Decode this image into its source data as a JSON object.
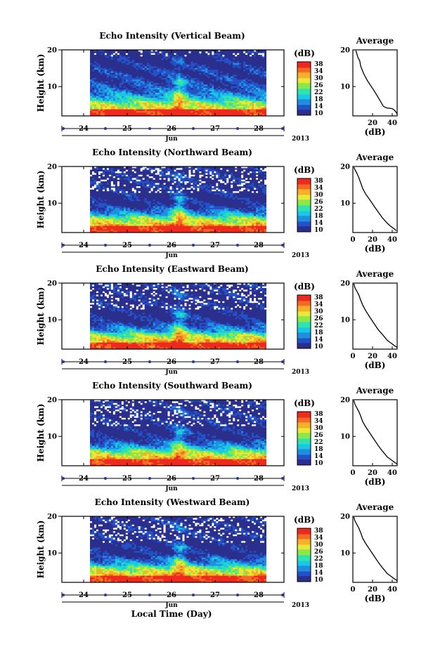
{
  "figure": {
    "xlabel": "Local Time (Day)",
    "month_label": "Jun",
    "year_label": "2013"
  },
  "chart_data": {
    "type": "heatmap",
    "x_ticks": [
      "24",
      "25",
      "26",
      "27",
      "28"
    ],
    "y_ticks": [
      "20",
      "10"
    ],
    "ylabel": "Height (km)",
    "ylim": [
      2,
      20
    ],
    "colorbar": {
      "unit_label": "(dB)",
      "ticks": [
        "38",
        "34",
        "30",
        "26",
        "22",
        "18",
        "14",
        "10"
      ],
      "range": [
        10,
        38
      ],
      "colors": [
        "#2b2f8c",
        "#2450c8",
        "#1f8fe0",
        "#18c8e6",
        "#2fe3b0",
        "#8ae84a",
        "#e8e838",
        "#f5b02a",
        "#f46a22",
        "#ee2a1e"
      ]
    },
    "profile": {
      "title": "Average",
      "xlabel": "(dB)",
      "y_ticks": [
        "20",
        "10"
      ],
      "xlim": [
        0,
        45
      ]
    },
    "panels": [
      {
        "title": "Echo Intensity (Vertical Beam)",
        "profile_x_ticks": [
          "20",
          "40"
        ],
        "profile": [
          [
            45,
            2.5
          ],
          [
            44,
            3
          ],
          [
            42,
            3.6
          ],
          [
            40,
            4
          ],
          [
            34,
            4.2
          ],
          [
            31,
            4.6
          ],
          [
            28,
            6
          ],
          [
            24,
            7.8
          ],
          [
            20,
            9.5
          ],
          [
            15,
            11.5
          ],
          [
            11,
            13.5
          ],
          [
            8,
            15.5
          ],
          [
            7,
            17
          ],
          [
            5,
            18
          ],
          [
            4,
            19
          ],
          [
            3,
            19.8
          ]
        ]
      },
      {
        "title": "Echo Intensity (Northward Beam)",
        "profile_x_ticks": [
          "0",
          "20",
          "40"
        ],
        "profile": [
          [
            44,
            2.5
          ],
          [
            42,
            3
          ],
          [
            38,
            3.8
          ],
          [
            35,
            4.5
          ],
          [
            30,
            6
          ],
          [
            26,
            7.5
          ],
          [
            22,
            9
          ],
          [
            17,
            11
          ],
          [
            13,
            12.5
          ],
          [
            10,
            14
          ],
          [
            8,
            15.5
          ],
          [
            6,
            17
          ],
          [
            4,
            18.2
          ],
          [
            2,
            19.2
          ],
          [
            1,
            19.8
          ]
        ]
      },
      {
        "title": "Echo Intensity (Eastward Beam)",
        "profile_x_ticks": [
          "0",
          "20",
          "40"
        ],
        "profile": [
          [
            45,
            2.5
          ],
          [
            42,
            3
          ],
          [
            38,
            3.8
          ],
          [
            35,
            4.4
          ],
          [
            30,
            6
          ],
          [
            26,
            7.2
          ],
          [
            22,
            8.8
          ],
          [
            17,
            10.8
          ],
          [
            13,
            12.5
          ],
          [
            10,
            14
          ],
          [
            8,
            15.3
          ],
          [
            6,
            16.8
          ],
          [
            4,
            17.8
          ],
          [
            2,
            18.8
          ],
          [
            1,
            19.8
          ]
        ]
      },
      {
        "title": "Echo Intensity (Southward Beam)",
        "profile_x_ticks": [
          "0",
          "20",
          "40"
        ],
        "profile": [
          [
            45,
            2.5
          ],
          [
            42,
            3
          ],
          [
            38,
            3.8
          ],
          [
            35,
            4.4
          ],
          [
            30,
            6
          ],
          [
            26,
            7.4
          ],
          [
            22,
            9
          ],
          [
            17,
            11
          ],
          [
            13,
            12.6
          ],
          [
            10,
            14
          ],
          [
            8,
            15.5
          ],
          [
            6,
            16.8
          ],
          [
            4,
            17.8
          ],
          [
            2,
            18.8
          ],
          [
            1,
            19.8
          ]
        ]
      },
      {
        "title": "Echo Intensity (Westward Beam)",
        "profile_x_ticks": [
          "0",
          "20",
          "40"
        ],
        "profile": [
          [
            45,
            2.5
          ],
          [
            42,
            3
          ],
          [
            38,
            3.8
          ],
          [
            35,
            4.4
          ],
          [
            30,
            6
          ],
          [
            26,
            7.4
          ],
          [
            22,
            9
          ],
          [
            17,
            11
          ],
          [
            13,
            12.6
          ],
          [
            10,
            14
          ],
          [
            8,
            15.5
          ],
          [
            6,
            16.8
          ],
          [
            4,
            17.8
          ],
          [
            2,
            18.8
          ],
          [
            1,
            19.8
          ]
        ]
      }
    ]
  }
}
